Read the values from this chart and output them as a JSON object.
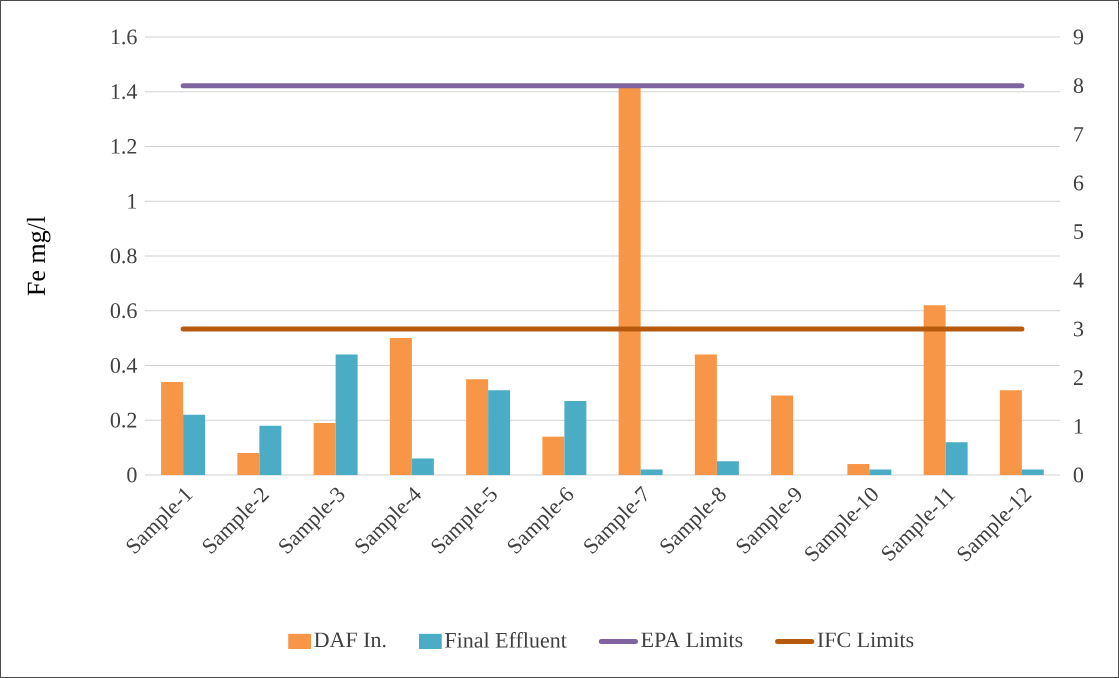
{
  "chart_data": {
    "type": "bar",
    "ylabel": "Fe mg/l",
    "categories": [
      "Sample-1",
      "Sample-2",
      "Sample-3",
      "Sample-4",
      "Sample-5",
      "Sample-6",
      "Sample-7",
      "Sample-8",
      "Sample-9",
      "Sample-10",
      "Sample-11",
      "Sample-12"
    ],
    "series": [
      {
        "name": "DAF In.",
        "color": "#f79646",
        "values": [
          0.34,
          0.08,
          0.19,
          0.5,
          0.35,
          0.14,
          1.42,
          0.44,
          0.29,
          0.04,
          0.62,
          0.31
        ]
      },
      {
        "name": "Final Effluent",
        "color": "#4bacc6",
        "values": [
          0.22,
          0.18,
          0.44,
          0.06,
          0.31,
          0.27,
          0.02,
          0.05,
          null,
          0.02,
          0.12,
          0.02
        ]
      },
      {
        "name": "EPA Limits",
        "type": "line",
        "axis": "y2",
        "color": "#8064a2",
        "values": [
          8,
          8,
          8,
          8,
          8,
          8,
          8,
          8,
          8,
          8,
          8,
          8
        ]
      },
      {
        "name": "IFC Limits",
        "type": "line",
        "axis": "y2",
        "color": "#b85a0d",
        "values": [
          3,
          3,
          3,
          3,
          3,
          3,
          3,
          3,
          3,
          3,
          3,
          3
        ]
      }
    ],
    "ylim": [
      0,
      1.6
    ],
    "yticks": [
      0,
      0.2,
      0.4,
      0.6,
      0.8,
      1,
      1.2,
      1.4,
      1.6
    ],
    "y2lim": [
      0,
      9
    ],
    "y2ticks": [
      0,
      1,
      2,
      3,
      4,
      5,
      6,
      7,
      8,
      9
    ],
    "grid": "y",
    "legend": "bottom",
    "marker": "none"
  }
}
